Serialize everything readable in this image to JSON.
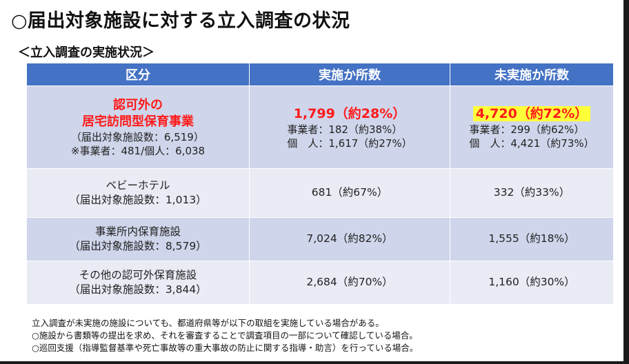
{
  "title": "○届出対象施設に対する立入調査の状況",
  "subtitle": "＜立入調査の実施状況＞",
  "table": {
    "headers": [
      "区分",
      "実施か所数",
      "未実施か所数"
    ],
    "rows": [
      {
        "category_main": "認可外の\n居宅訪問型保育事業",
        "category_sub": "（届出対象施設数：6,519）\n※事業者：481/個人：6,038",
        "done_main": "1,799（約28%）",
        "done_sub": "事業者：182（約38%）\n個　人：1,617（約27%）",
        "notdone_main": "4,720（約72%）",
        "notdone_sub": "事業者：299（約62%）\n個　人：4,421（約73%）"
      },
      {
        "category": "ベビーホテル\n（届出対象施設数：1,013）",
        "done": "681（約67%）",
        "notdone": "332（約33%）"
      },
      {
        "category": "事業所内保育施設\n（届出対象施設数：8,579）",
        "done": "7,024（約82%）",
        "notdone": "1,555（約18%）"
      },
      {
        "category": "その他の認可外保育施設\n（届出対象施設数：3,844）",
        "done": "2,684（約70%）",
        "notdone": "1,160（約30%）"
      }
    ]
  },
  "notes": [
    "立入調査が未実施の施設についても、都道府県等が以下の取組を実施している場合がある。",
    "○施設から書類等の提出を求め、それを審査することで調査項目の一部について確認している場合。",
    "○巡回支援（指導監督基準や死亡事故等の重大事故の防止に関する指導・助言）を行っている場合。"
  ],
  "colors": {
    "header_bg": "#4472c4",
    "row_dark": "#cfd5ea",
    "row_light": "#e9ebf5",
    "emphasis_red": "#ff1a1a",
    "highlight_yellow": "#ffff3a"
  }
}
